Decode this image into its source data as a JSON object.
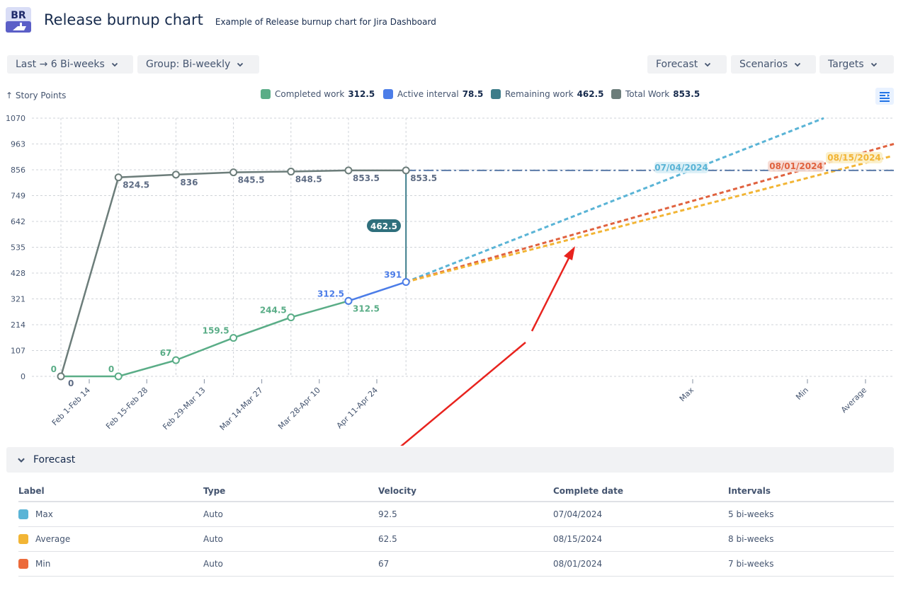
{
  "app": {
    "logo_text": "BR",
    "title": "Release burnup chart",
    "subtitle": "Example of Release burnup chart for Jira Dashboard"
  },
  "toolbar": {
    "range_label": "Last → 6 Bi-weeks",
    "group_label": "Group: Bi-weekly",
    "forecast_label": "Forecast",
    "scenarios_label": "Scenarios",
    "targets_label": "Targets"
  },
  "legend": {
    "y_axis_title": "↑ Story Points",
    "items": [
      {
        "label": "Completed work",
        "value": "312.5",
        "color": "#5aad87"
      },
      {
        "label": "Active interval",
        "value": "78.5",
        "color": "#4c7de8"
      },
      {
        "label": "Remaining work",
        "value": "462.5",
        "color": "#3d7d8a"
      },
      {
        "label": "Total Work",
        "value": "853.5",
        "color": "#6c7d7a"
      }
    ]
  },
  "chart_data": {
    "type": "line",
    "y_ticks": [
      0,
      107,
      214,
      321,
      428,
      535,
      642,
      749,
      856,
      963,
      1070
    ],
    "ylim": [
      0,
      1070
    ],
    "grid": true,
    "x_categories": [
      "Feb 1-Feb 14",
      "Feb 15-Feb 28",
      "Feb 29-Mar 13",
      "Mar 14-Mar 27",
      "Mar 28-Apr 10",
      "Apr 11-Apr 24"
    ],
    "forecast_ticks": [
      "Max",
      "Min",
      "Average"
    ],
    "series": [
      {
        "name": "Total Work",
        "color": "#6c7d7a",
        "values": [
          0,
          824.5,
          836,
          845.5,
          848.5,
          853.5,
          853.5
        ],
        "labels": [
          "0",
          "824.5",
          "836",
          "845.5",
          "848.5",
          "853.5",
          "853.5"
        ]
      },
      {
        "name": "Completed work",
        "color": "#5aad87",
        "values": [
          0,
          0,
          67,
          159.5,
          244.5,
          312.5
        ],
        "labels": [
          "0",
          "0",
          "67",
          "159.5",
          "244.5",
          "312.5"
        ]
      },
      {
        "name": "Active interval",
        "color": "#4c7de8",
        "values": [
          312.5,
          391
        ],
        "labels": [
          "312.5",
          "391"
        ]
      }
    ],
    "remaining_label": "462.5",
    "total_target": 853.5,
    "forecasts": [
      {
        "label": "Max",
        "date": "07/04/2024",
        "color": "#5ab4d6"
      },
      {
        "label": "Min",
        "date": "08/01/2024",
        "color": "#e0623f"
      },
      {
        "label": "Average",
        "date": "08/15/2024",
        "color": "#f2b535"
      }
    ]
  },
  "forecast_section": {
    "title": "Forecast",
    "columns": [
      "Label",
      "Type",
      "Velocity",
      "Complete date",
      "Intervals"
    ],
    "rows": [
      {
        "label": "Max",
        "color": "#5ab4d6",
        "type": "Auto",
        "velocity": "92.5",
        "date": "07/04/2024",
        "intervals": "5 bi-weeks"
      },
      {
        "label": "Average",
        "color": "#f2b535",
        "type": "Auto",
        "velocity": "62.5",
        "date": "08/15/2024",
        "intervals": "8 bi-weeks"
      },
      {
        "label": "Min",
        "color": "#ec6a3a",
        "type": "Auto",
        "velocity": "67",
        "date": "08/01/2024",
        "intervals": "7 bi-weeks"
      }
    ]
  }
}
